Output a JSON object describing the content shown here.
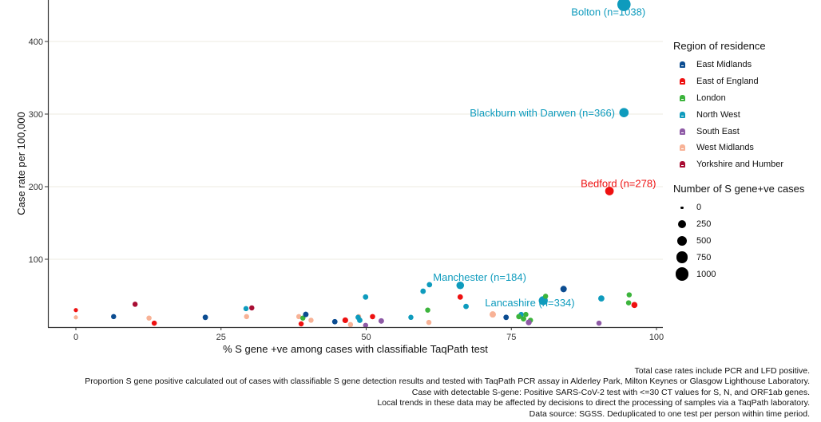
{
  "chart_data": {
    "type": "scatter",
    "title": "",
    "xlabel": "% S gene +ve among cases with classifiable TaqPath test",
    "ylabel": "Case rate per 100,000",
    "xlim": [
      -4.5,
      101
    ],
    "ylim": [
      0,
      460
    ],
    "x_ticks": [
      0,
      25,
      50,
      75,
      100
    ],
    "y_ticks": [
      100,
      200,
      300,
      400
    ],
    "grid": "horizontal major",
    "regions": [
      {
        "name": "East Midlands",
        "color": "#0b4c91"
      },
      {
        "name": "East of England",
        "color": "#ee1111"
      },
      {
        "name": "London",
        "color": "#3cb43c"
      },
      {
        "name": "North West",
        "color": "#0e9bbd"
      },
      {
        "name": "South East",
        "color": "#8e5aa6"
      },
      {
        "name": "West Midlands",
        "color": "#f8b296"
      },
      {
        "name": "Yorkshire and Humber",
        "color": "#a80d33"
      }
    ],
    "size_legend": {
      "title": "Number of S gene+ve cases",
      "values": [
        0,
        250,
        500,
        750,
        1000
      ]
    },
    "color_legend_title": "Region of residence",
    "points": [
      {
        "x": 0,
        "y": 30,
        "region": "East of England",
        "n": 5
      },
      {
        "x": 0,
        "y": 20,
        "region": "West Midlands",
        "n": 5
      },
      {
        "x": 6.5,
        "y": 21,
        "region": "East Midlands",
        "n": 30
      },
      {
        "x": 10.2,
        "y": 38,
        "region": "Yorkshire and Humber",
        "n": 30
      },
      {
        "x": 12.6,
        "y": 19,
        "region": "West Midlands",
        "n": 30
      },
      {
        "x": 13.5,
        "y": 12,
        "region": "East of England",
        "n": 30
      },
      {
        "x": 22.3,
        "y": 20,
        "region": "East Midlands",
        "n": 40
      },
      {
        "x": 29.3,
        "y": 32,
        "region": "North West",
        "n": 30
      },
      {
        "x": 30.3,
        "y": 33,
        "region": "Yorkshire and Humber",
        "n": 30
      },
      {
        "x": 29.4,
        "y": 21,
        "region": "West Midlands",
        "n": 30
      },
      {
        "x": 38.4,
        "y": 21,
        "region": "West Midlands",
        "n": 30
      },
      {
        "x": 39.1,
        "y": 19,
        "region": "London",
        "n": 30
      },
      {
        "x": 39.6,
        "y": 24,
        "region": "East Midlands",
        "n": 45
      },
      {
        "x": 38.8,
        "y": 11,
        "region": "East of England",
        "n": 30
      },
      {
        "x": 40.5,
        "y": 16,
        "region": "West Midlands",
        "n": 30
      },
      {
        "x": 44.6,
        "y": 14,
        "region": "East Midlands",
        "n": 40
      },
      {
        "x": 46.4,
        "y": 16,
        "region": "East of England",
        "n": 55
      },
      {
        "x": 47.3,
        "y": 10,
        "region": "West Midlands",
        "n": 30
      },
      {
        "x": 48.7,
        "y": 21,
        "region": "West Midlands",
        "n": 30
      },
      {
        "x": 48.6,
        "y": 20,
        "region": "North West",
        "n": 30
      },
      {
        "x": 48.9,
        "y": 16,
        "region": "North West",
        "n": 40
      },
      {
        "x": 49.9,
        "y": 48,
        "region": "North West",
        "n": 40
      },
      {
        "x": 49.9,
        "y": 9,
        "region": "South East",
        "n": 30
      },
      {
        "x": 51.1,
        "y": 21,
        "region": "East of England",
        "n": 35
      },
      {
        "x": 52.6,
        "y": 15,
        "region": "South East",
        "n": 45
      },
      {
        "x": 57.7,
        "y": 20,
        "region": "North West",
        "n": 30
      },
      {
        "x": 59.8,
        "y": 56,
        "region": "North West",
        "n": 40
      },
      {
        "x": 60.9,
        "y": 65,
        "region": "North West",
        "n": 40
      },
      {
        "x": 60.6,
        "y": 30,
        "region": "London",
        "n": 30
      },
      {
        "x": 60.8,
        "y": 13,
        "region": "West Midlands",
        "n": 30
      },
      {
        "x": 66.2,
        "y": 64,
        "region": "North West",
        "n": 184,
        "label": "Manchester (n=184)"
      },
      {
        "x": 66.2,
        "y": 48,
        "region": "East of England",
        "n": 40
      },
      {
        "x": 67.2,
        "y": 35,
        "region": "North West",
        "n": 40
      },
      {
        "x": 71.8,
        "y": 24,
        "region": "West Midlands",
        "n": 90
      },
      {
        "x": 74.1,
        "y": 20,
        "region": "East Midlands",
        "n": 40
      },
      {
        "x": 76.7,
        "y": 24,
        "region": "North West",
        "n": 30
      },
      {
        "x": 76.3,
        "y": 21,
        "region": "London",
        "n": 40
      },
      {
        "x": 77.1,
        "y": 18,
        "region": "London",
        "n": 40
      },
      {
        "x": 77.5,
        "y": 24,
        "region": "London",
        "n": 30
      },
      {
        "x": 78.3,
        "y": 16,
        "region": "London",
        "n": 30
      },
      {
        "x": 78.0,
        "y": 13,
        "region": "South East",
        "n": 60
      },
      {
        "x": 80.5,
        "y": 43,
        "region": "North West",
        "n": 334,
        "label": "Lancashire (n=334)"
      },
      {
        "x": 80.9,
        "y": 49,
        "region": "London",
        "n": 30
      },
      {
        "x": 84.0,
        "y": 59,
        "region": "East Midlands",
        "n": 90
      },
      {
        "x": 90.5,
        "y": 46,
        "region": "North West",
        "n": 80
      },
      {
        "x": 90.1,
        "y": 12,
        "region": "South East",
        "n": 30
      },
      {
        "x": 95.3,
        "y": 51,
        "region": "London",
        "n": 30
      },
      {
        "x": 95.2,
        "y": 40,
        "region": "London",
        "n": 30
      },
      {
        "x": 96.2,
        "y": 37,
        "region": "East of England",
        "n": 70
      },
      {
        "x": 91.9,
        "y": 194,
        "region": "East of England",
        "n": 278,
        "label": "Bedford (n=278)"
      },
      {
        "x": 94.4,
        "y": 302,
        "region": "North West",
        "n": 366,
        "label": "Blackburn with Darwen (n=366)"
      },
      {
        "x": 94.4,
        "y": 451,
        "region": "North West",
        "n": 1038,
        "label": "Bolton (n=1038)"
      }
    ]
  },
  "caption_lines": [
    "Total case rates include PCR and LFD positive.",
    "Proportion S gene positive calculated out of cases with classifiable S gene detection results and tested with TaqPath PCR assay in Alderley Park, Milton Keynes or Glasgow Lighthouse Laboratory.",
    "Case with detectable S-gene: Positive SARS-CoV-2 test with <=30 CT values for S, N, and ORF1ab genes.",
    "Local trends in these data may be affected by decisions to direct the processing of samples via a TaqPath laboratory.",
    "Data source: SGSS. Deduplicated to one test per person within time period."
  ]
}
